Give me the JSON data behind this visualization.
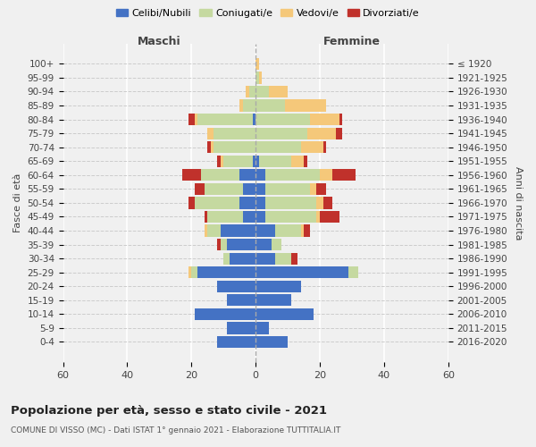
{
  "age_groups": [
    "0-4",
    "5-9",
    "10-14",
    "15-19",
    "20-24",
    "25-29",
    "30-34",
    "35-39",
    "40-44",
    "45-49",
    "50-54",
    "55-59",
    "60-64",
    "65-69",
    "70-74",
    "75-79",
    "80-84",
    "85-89",
    "90-94",
    "95-99",
    "100+"
  ],
  "birth_years": [
    "2016-2020",
    "2011-2015",
    "2006-2010",
    "2001-2005",
    "1996-2000",
    "1991-1995",
    "1986-1990",
    "1981-1985",
    "1976-1980",
    "1971-1975",
    "1966-1970",
    "1961-1965",
    "1956-1960",
    "1951-1955",
    "1946-1950",
    "1941-1945",
    "1936-1940",
    "1931-1935",
    "1926-1930",
    "1921-1925",
    "≤ 1920"
  ],
  "males": {
    "celibe": [
      12,
      9,
      19,
      9,
      12,
      18,
      8,
      9,
      11,
      4,
      5,
      4,
      5,
      1,
      0,
      0,
      1,
      0,
      0,
      0,
      0
    ],
    "coniugato": [
      0,
      0,
      0,
      0,
      0,
      2,
      2,
      2,
      4,
      11,
      14,
      12,
      12,
      9,
      13,
      13,
      17,
      4,
      2,
      0,
      0
    ],
    "vedovo": [
      0,
      0,
      0,
      0,
      0,
      1,
      0,
      0,
      1,
      0,
      0,
      0,
      0,
      1,
      1,
      2,
      1,
      1,
      1,
      0,
      0
    ],
    "divorziato": [
      0,
      0,
      0,
      0,
      0,
      0,
      0,
      1,
      0,
      1,
      2,
      3,
      6,
      1,
      1,
      0,
      2,
      0,
      0,
      0,
      0
    ]
  },
  "females": {
    "nubile": [
      10,
      4,
      18,
      11,
      14,
      29,
      6,
      5,
      6,
      3,
      3,
      3,
      3,
      1,
      0,
      0,
      0,
      0,
      0,
      0,
      0
    ],
    "coniugata": [
      0,
      0,
      0,
      0,
      0,
      3,
      5,
      3,
      8,
      16,
      16,
      14,
      17,
      10,
      14,
      16,
      17,
      9,
      4,
      1,
      0
    ],
    "vedova": [
      0,
      0,
      0,
      0,
      0,
      0,
      0,
      0,
      1,
      1,
      2,
      2,
      4,
      4,
      7,
      9,
      9,
      13,
      6,
      1,
      1
    ],
    "divorziata": [
      0,
      0,
      0,
      0,
      0,
      0,
      2,
      0,
      2,
      6,
      3,
      3,
      7,
      1,
      1,
      2,
      1,
      0,
      0,
      0,
      0
    ]
  },
  "colors": {
    "celibe": "#4472c4",
    "coniugato": "#c5d9a0",
    "vedovo": "#f5c87a",
    "divorziato": "#c0312b"
  },
  "xlim": [
    -60,
    60
  ],
  "xticks": [
    -60,
    -40,
    -20,
    0,
    20,
    40,
    60
  ],
  "xticklabels": [
    "60",
    "40",
    "20",
    "0",
    "20",
    "40",
    "60"
  ],
  "title": "Popolazione per età, sesso e stato civile - 2021",
  "subtitle": "COMUNE DI VISSO (MC) - Dati ISTAT 1° gennaio 2021 - Elaborazione TUTTITALIA.IT",
  "ylabel_left": "Fasce di età",
  "ylabel_right": "Anni di nascita",
  "maschi_label": "Maschi",
  "femmine_label": "Femmine",
  "legend_labels": [
    "Celibi/Nubili",
    "Coniugati/e",
    "Vedovi/e",
    "Divorziati/e"
  ],
  "bg_color": "#f0f0f0",
  "bar_height": 0.85,
  "fig_width": 6.0,
  "fig_height": 5.0,
  "dpi": 100
}
